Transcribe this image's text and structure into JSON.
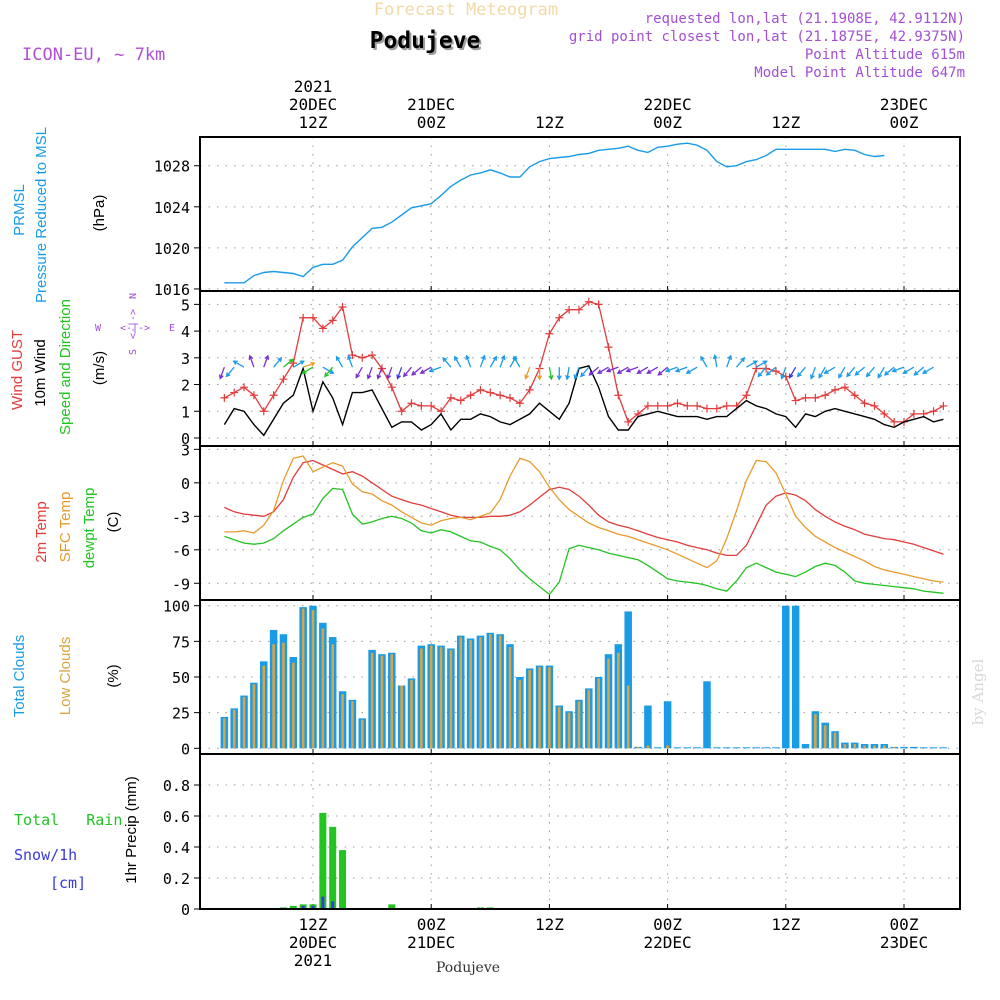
{
  "header": {
    "title": "Forecast Meteogram",
    "location": "Podujeve",
    "model": "ICON-EU, ~ 7km",
    "requested": "requested lon,lat (21.1908E, 42.9112N)",
    "gridpoint": "grid point closest lon,lat (21.1875E, 42.9375N)",
    "point_alt": "Point Altitude 615m",
    "model_alt": "Model Point Altitude 647m"
  },
  "top_axis": {
    "year": "2021",
    "ticks": [
      {
        "t": 0,
        "l1": "20DEC",
        "l2": "12Z"
      },
      {
        "t": 12,
        "l1": "21DEC",
        "l2": "00Z"
      },
      {
        "t": 24,
        "l1": "",
        "l2": "12Z"
      },
      {
        "t": 36,
        "l1": "22DEC",
        "l2": "00Z"
      },
      {
        "t": 48,
        "l1": "",
        "l2": "12Z"
      },
      {
        "t": 60,
        "l1": "23DEC",
        "l2": "00Z"
      }
    ]
  },
  "bottom_axis": {
    "year": "2021",
    "location": "Podujeve",
    "ticks": [
      {
        "t": 0,
        "l1": "12Z",
        "l2": "20DEC"
      },
      {
        "t": 12,
        "l1": "00Z",
        "l2": "21DEC"
      },
      {
        "t": 24,
        "l1": "12Z",
        "l2": ""
      },
      {
        "t": 36,
        "l1": "00Z",
        "l2": "22DEC"
      },
      {
        "t": 48,
        "l1": "12Z",
        "l2": ""
      },
      {
        "t": 60,
        "l1": "00Z",
        "l2": "23DEC"
      }
    ]
  },
  "watermark": "by Angel",
  "colors": {
    "pressure": "#1a9be6",
    "gust": "#e23c3c",
    "wind": "#000000",
    "temp2m": "#e23c3c",
    "sfc": "#e89a2c",
    "dewpt": "#22c422",
    "total_clouds": "#1a9be6",
    "low_clouds": "#d9a441",
    "rain": "#22c422",
    "snow": "#3a3ad8",
    "compass": "#a24fd6"
  },
  "labels": {
    "pressure": [
      "PRMSL",
      "Pressure Reduced to MSL",
      "(hPa)"
    ],
    "wind": [
      "Wind GUST",
      "10m Wind",
      "Speed and Direction",
      "(m/s)"
    ],
    "temp": [
      "2m Temp",
      "SFC Temp",
      "dewpt Temp",
      "(C)"
    ],
    "clouds": [
      "Total Clouds",
      "Low Clouds",
      "(%)"
    ],
    "precip_left": [
      "Total   Rain",
      "Snow/1h",
      "[cm]"
    ],
    "precip_axis": "1hr Precip (mm)",
    "compass": {
      "n": "N",
      "s": "S",
      "w": "W",
      "e": "E"
    }
  },
  "chart_data": [
    {
      "type": "line",
      "name": "PRMSL",
      "ylabel": "(hPa)",
      "ylim": [
        1015.8,
        1030.8
      ],
      "yticks": [
        1016,
        1020,
        1024,
        1028
      ],
      "x_start": -9,
      "x_step": 1,
      "series": [
        {
          "name": "PRMSL",
          "values": [
            1016.6,
            1016.6,
            1016.6,
            1017.3,
            1017.6,
            1017.7,
            1017.6,
            1017.5,
            1017.2,
            1018.1,
            1018.4,
            1018.4,
            1018.8,
            1020.1,
            1021.0,
            1021.9,
            1022.0,
            1022.5,
            1023.2,
            1023.9,
            1024.1,
            1024.3,
            1025.1,
            1026.0,
            1026.6,
            1027.1,
            1027.3,
            1027.6,
            1027.3,
            1026.9,
            1026.9,
            1027.9,
            1028.4,
            1028.7,
            1028.8,
            1028.9,
            1029.1,
            1029.2,
            1029.5,
            1029.6,
            1029.7,
            1029.9,
            1029.5,
            1029.3,
            1029.8,
            1029.9,
            1030.1,
            1030.2,
            1030.0,
            1029.5,
            1028.4,
            1027.9,
            1028.0,
            1028.4,
            1028.6,
            1029.0,
            1029.6,
            1029.6,
            1029.6,
            1029.6,
            1029.6,
            1029.6,
            1029.4,
            1029.6,
            1029.5,
            1029.1,
            1028.9,
            1029.0
          ]
        }
      ]
    },
    {
      "type": "line",
      "name": "Wind",
      "ylabel": "(m/s)",
      "ylim": [
        -0.3,
        5.5
      ],
      "yticks": [
        0,
        1,
        2,
        3,
        4,
        5
      ],
      "x_start": -9,
      "x_step": 1,
      "series": [
        {
          "name": "Wind GUST",
          "values": [
            1.5,
            1.7,
            1.9,
            1.6,
            1.0,
            1.6,
            2.2,
            2.8,
            4.5,
            4.5,
            4.1,
            4.4,
            4.9,
            3.1,
            3.0,
            3.1,
            2.6,
            1.9,
            1.0,
            1.3,
            1.2,
            1.2,
            1.0,
            1.5,
            1.4,
            1.6,
            1.8,
            1.7,
            1.6,
            1.5,
            1.3,
            1.8,
            2.6,
            3.9,
            4.5,
            4.8,
            4.8,
            5.1,
            5.0,
            3.4,
            1.6,
            0.6,
            0.9,
            1.2,
            1.2,
            1.2,
            1.3,
            1.2,
            1.2,
            1.1,
            1.1,
            1.2,
            1.2,
            1.6,
            2.6,
            2.6,
            2.5,
            2.3,
            1.4,
            1.5,
            1.5,
            1.6,
            1.8,
            1.9,
            1.6,
            1.3,
            1.2,
            0.9,
            0.6,
            0.6,
            0.9,
            0.9,
            1.0,
            1.2
          ]
        },
        {
          "name": "10m Wind",
          "values": [
            0.5,
            1.1,
            1.0,
            0.5,
            0.1,
            0.7,
            1.3,
            1.6,
            2.6,
            1.0,
            2.1,
            1.5,
            0.5,
            1.7,
            1.7,
            1.8,
            1.1,
            0.4,
            0.6,
            0.6,
            0.3,
            0.5,
            0.9,
            0.3,
            0.7,
            0.7,
            0.9,
            0.8,
            0.6,
            0.5,
            0.7,
            0.9,
            1.3,
            1.0,
            0.7,
            1.3,
            2.6,
            2.7,
            1.9,
            0.8,
            0.3,
            0.3,
            0.8,
            0.9,
            1.0,
            0.9,
            0.8,
            0.8,
            0.8,
            0.7,
            0.8,
            0.8,
            1.1,
            1.4,
            1.2,
            1.1,
            0.9,
            0.8,
            0.4,
            0.9,
            0.8,
            1.0,
            1.1,
            1.0,
            0.9,
            0.8,
            0.7,
            0.5,
            0.4,
            0.6,
            0.7,
            0.8,
            0.6,
            0.7
          ]
        }
      ]
    },
    {
      "type": "line",
      "name": "Temperature",
      "ylabel": "(C)",
      "ylim": [
        -10.5,
        3.3
      ],
      "yticks": [
        -9,
        -6,
        -3,
        0,
        3
      ],
      "x_start": -9,
      "x_step": 1,
      "series": [
        {
          "name": "2m Temp",
          "values": [
            -2.2,
            -2.6,
            -2.8,
            -2.9,
            -3.0,
            -2.6,
            -1.5,
            0.5,
            1.8,
            2.0,
            1.6,
            1.2,
            0.8,
            1.0,
            0.6,
            0.0,
            -0.6,
            -1.2,
            -1.5,
            -1.8,
            -2.0,
            -2.3,
            -2.6,
            -2.9,
            -3.1,
            -3.1,
            -3.1,
            -3.0,
            -3.0,
            -2.9,
            -2.6,
            -2.0,
            -1.3,
            -0.6,
            -0.4,
            -0.6,
            -1.2,
            -2.0,
            -2.9,
            -3.5,
            -3.8,
            -4.0,
            -4.3,
            -4.6,
            -4.9,
            -5.1,
            -5.3,
            -5.6,
            -5.8,
            -6.0,
            -6.3,
            -6.5,
            -6.5,
            -5.6,
            -3.8,
            -2.0,
            -1.2,
            -0.9,
            -1.1,
            -1.6,
            -2.4,
            -3.0,
            -3.5,
            -3.9,
            -4.2,
            -4.6,
            -4.8,
            -5.0,
            -5.1,
            -5.3,
            -5.5,
            -5.8,
            -6.1,
            -6.4
          ]
        },
        {
          "name": "SFC Temp",
          "values": [
            -4.4,
            -4.4,
            -4.3,
            -4.5,
            -3.8,
            -2.5,
            0.2,
            2.2,
            2.4,
            1.0,
            1.4,
            1.8,
            1.5,
            -0.1,
            -0.8,
            -1.0,
            -1.6,
            -2.0,
            -2.6,
            -3.1,
            -3.6,
            -3.8,
            -3.4,
            -3.2,
            -3.1,
            -3.3,
            -3.0,
            -2.7,
            -1.5,
            0.6,
            2.2,
            1.9,
            1.0,
            -0.4,
            -1.5,
            -2.4,
            -3.0,
            -3.6,
            -4.0,
            -4.3,
            -4.6,
            -4.8,
            -5.1,
            -5.4,
            -5.7,
            -6.0,
            -6.4,
            -6.8,
            -7.2,
            -7.6,
            -7.0,
            -5.0,
            -2.5,
            0.2,
            2.0,
            1.9,
            0.9,
            -1.0,
            -3.0,
            -4.0,
            -4.8,
            -5.3,
            -5.8,
            -6.2,
            -6.6,
            -7.0,
            -7.5,
            -7.8,
            -8.0,
            -8.2,
            -8.4,
            -8.6,
            -8.8,
            -8.9
          ]
        },
        {
          "name": "dewpt Temp",
          "values": [
            -4.8,
            -5.1,
            -5.4,
            -5.5,
            -5.4,
            -5.0,
            -4.3,
            -3.7,
            -3.1,
            -2.8,
            -1.4,
            -0.5,
            -0.6,
            -2.8,
            -3.7,
            -3.5,
            -3.2,
            -3.0,
            -3.2,
            -3.6,
            -4.3,
            -4.5,
            -4.2,
            -4.4,
            -4.8,
            -5.2,
            -5.3,
            -5.7,
            -6.0,
            -6.8,
            -7.8,
            -8.6,
            -9.3,
            -10.0,
            -8.9,
            -5.9,
            -5.6,
            -5.8,
            -6.0,
            -6.3,
            -6.5,
            -6.7,
            -6.9,
            -7.4,
            -8.0,
            -8.6,
            -8.8,
            -8.9,
            -9.0,
            -9.2,
            -9.5,
            -9.7,
            -8.8,
            -7.6,
            -7.2,
            -7.6,
            -8.0,
            -8.2,
            -8.4,
            -8.0,
            -7.5,
            -7.2,
            -7.4,
            -8.0,
            -8.8,
            -9.0,
            -9.1,
            -9.2,
            -9.3,
            -9.4,
            -9.5,
            -9.7,
            -9.8,
            -9.9
          ]
        }
      ]
    },
    {
      "type": "bar",
      "name": "Clouds",
      "ylabel": "(%)",
      "ylim": [
        -4,
        104
      ],
      "yticks": [
        0,
        25,
        50,
        75,
        100
      ],
      "x_start": -9,
      "x_step": 1,
      "series": [
        {
          "name": "Total Clouds",
          "values": [
            22,
            28,
            37,
            46,
            61,
            83,
            80,
            64,
            99,
            100,
            88,
            78,
            40,
            34,
            21,
            69,
            66,
            67,
            44,
            49,
            72,
            73,
            72,
            70,
            79,
            77,
            79,
            81,
            80,
            73,
            50,
            56,
            58,
            58,
            30,
            26,
            34,
            42,
            50,
            66,
            73,
            96,
            1,
            30,
            0,
            33,
            0,
            0,
            0,
            47,
            0,
            0,
            0,
            0,
            0,
            0,
            0,
            100,
            100,
            3,
            26,
            18,
            12,
            4,
            4,
            3,
            3,
            3,
            1,
            1,
            1,
            0,
            0,
            0
          ]
        },
        {
          "name": "Low Clouds",
          "values": [
            21,
            27,
            36,
            45,
            58,
            73,
            74,
            60,
            98,
            97,
            84,
            73,
            38,
            33,
            20,
            67,
            65,
            66,
            44,
            48,
            70,
            72,
            71,
            69,
            78,
            76,
            78,
            80,
            79,
            71,
            48,
            55,
            57,
            57,
            29,
            25,
            33,
            41,
            49,
            63,
            67,
            44,
            1,
            2,
            0,
            2,
            0,
            0,
            0,
            0,
            0,
            0,
            0,
            0,
            0,
            0,
            0,
            0,
            0,
            0,
            24,
            16,
            11,
            3,
            3,
            2,
            2,
            2,
            1,
            0,
            0,
            0,
            0,
            0
          ]
        }
      ]
    },
    {
      "type": "bar",
      "name": "Precipitation",
      "ylabel": "1hr Precip (mm)",
      "ylim": [
        0,
        1.0
      ],
      "yticks": [
        0,
        0.2,
        0.4,
        0.6,
        0.8
      ],
      "x_start": -9,
      "x_step": 1,
      "series": [
        {
          "name": "Total Rain",
          "values": [
            0,
            0,
            0,
            0,
            0,
            0,
            0.01,
            0.02,
            0.03,
            0.03,
            0.62,
            0.53,
            0.38,
            0,
            0,
            0,
            0,
            0.03,
            0,
            0,
            0,
            0,
            0,
            0,
            0,
            0,
            0.01,
            0.01,
            0,
            0,
            0,
            0,
            0,
            0,
            0,
            0,
            0,
            0,
            0,
            0,
            0,
            0,
            0,
            0,
            0,
            0,
            0,
            0,
            0,
            0,
            0,
            0,
            0,
            0,
            0,
            0,
            0,
            0,
            0,
            0,
            0,
            0,
            0,
            0,
            0,
            0,
            0,
            0,
            0,
            0,
            0,
            0,
            0,
            0
          ]
        },
        {
          "name": "Snow/1h",
          "values": [
            0,
            0,
            0,
            0,
            0,
            0,
            0,
            0,
            0.02,
            0.02,
            0.08,
            0.05,
            0,
            0,
            0,
            0,
            0,
            0,
            0,
            0,
            0,
            0,
            0,
            0,
            0,
            0,
            0,
            0,
            0,
            0,
            0,
            0,
            0,
            0,
            0,
            0,
            0,
            0,
            0,
            0,
            0,
            0,
            0,
            0,
            0,
            0,
            0,
            0,
            0,
            0,
            0,
            0,
            0,
            0,
            0,
            0,
            0,
            0,
            0,
            0,
            0,
            0,
            0,
            0,
            0,
            0,
            0,
            0,
            0,
            0,
            0,
            0,
            0,
            0
          ]
        }
      ]
    }
  ],
  "wind_arrows": {
    "x_start": -9,
    "speed_units": "m/s",
    "angles_deg": [
      200,
      220,
      300,
      340,
      20,
      40,
      50,
      60,
      70,
      240,
      120,
      220,
      330,
      340,
      210,
      200,
      200,
      200,
      200,
      220,
      230,
      240,
      250,
      320,
      330,
      340,
      20,
      30,
      20,
      30,
      330,
      200,
      180,
      170,
      180,
      190,
      200,
      220,
      230,
      240,
      250,
      240,
      250,
      240,
      240,
      230,
      250,
      250,
      240,
      330,
      350,
      20,
      40,
      60,
      60,
      220,
      230,
      200,
      210,
      220,
      200,
      210,
      240,
      210,
      220,
      230,
      220,
      210,
      230,
      250,
      240,
      230,
      240
    ],
    "colors": [
      "#7a2fd0",
      "#1a9be6",
      "#1a9be6",
      "#7a2fd0",
      "#7a2fd0",
      "#1a9be6",
      "#22c422",
      "#1a9be6",
      "#e89a2c",
      "#22c422",
      "#1a9be6",
      "#22c422",
      "#1a9be6",
      "#1a9be6",
      "#7a2fd0",
      "#7a2fd0",
      "#7a2fd0",
      "#7a2fd0",
      "#3a3ad8",
      "#7a2fd0",
      "#7a2fd0",
      "#7a2fd0",
      "#1a9be6",
      "#1a9be6",
      "#1a9be6",
      "#1a9be6",
      "#1a9be6",
      "#1a9be6",
      "#1a9be6",
      "#1a9be6",
      "#1a9be6",
      "#e89a2c",
      "#e89a2c",
      "#22c422",
      "#1a9be6",
      "#1a9be6",
      "#1a9be6",
      "#1a9be6",
      "#7a2fd0",
      "#7a2fd0",
      "#7a2fd0",
      "#7a2fd0",
      "#7a2fd0",
      "#7a2fd0",
      "#7a2fd0",
      "#7a2fd0",
      "#1a9be6",
      "#1a9be6",
      "#1a9be6",
      "#1a9be6",
      "#1a9be6",
      "#1a9be6",
      "#1a9be6",
      "#1a9be6",
      "#1a9be6",
      "#1a9be6",
      "#1a9be6",
      "#1a9be6",
      "#3a3ad8",
      "#1a9be6",
      "#1a9be6",
      "#1a9be6",
      "#1a9be6",
      "#1a9be6",
      "#1a9be6",
      "#1a9be6",
      "#1a9be6",
      "#1a9be6",
      "#1a9be6",
      "#1a9be6",
      "#1a9be6",
      "#1a9be6",
      "#1a9be6"
    ]
  }
}
